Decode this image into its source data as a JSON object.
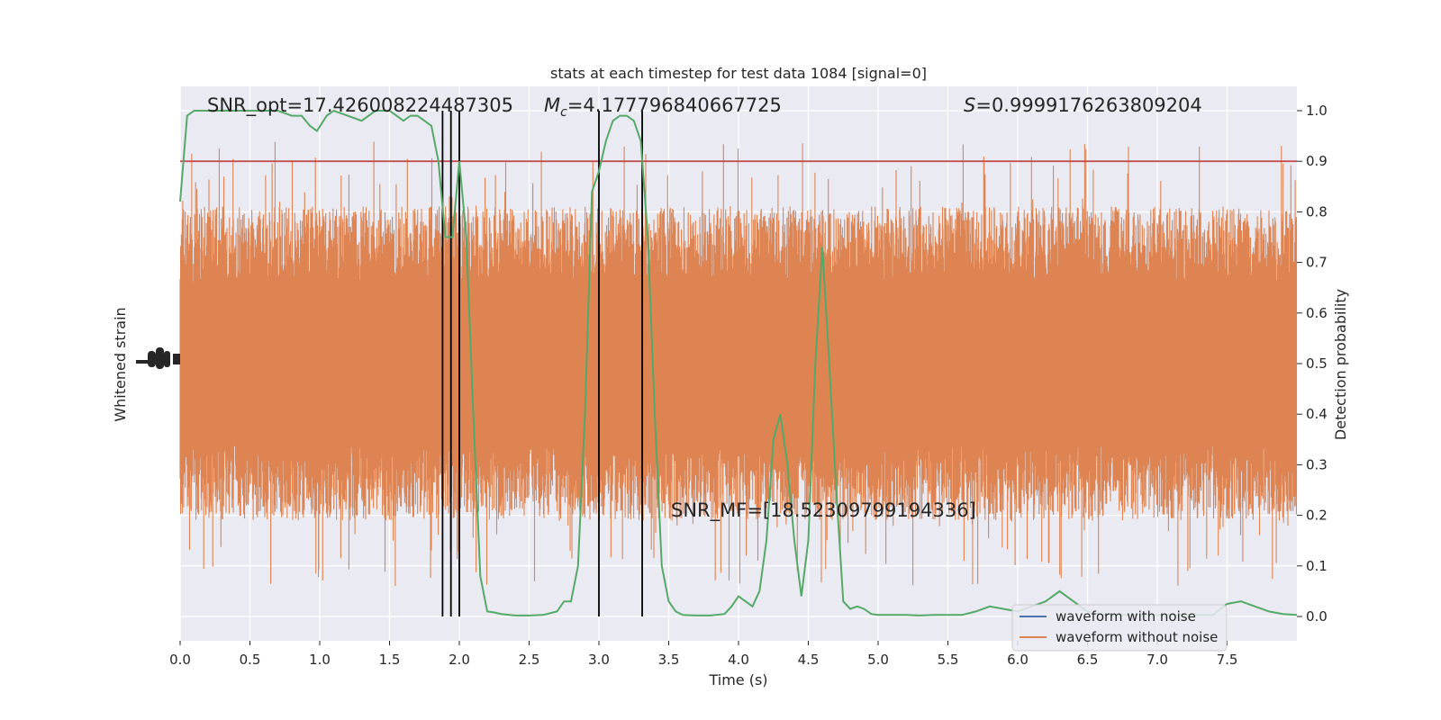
{
  "chart_data": {
    "type": "line",
    "title": "stats at each timestep for test data 1084 [signal=0]",
    "xlabel": "Time (s)",
    "ylabel_left": "Whitened strain",
    "ylabel_right": "Detection probability",
    "xlim": [
      0.0,
      8.0
    ],
    "ylim_right": [
      -0.048,
      1.048
    ],
    "x_ticks": [
      "0.0",
      "0.5",
      "1.0",
      "1.5",
      "2.0",
      "2.5",
      "3.0",
      "3.5",
      "4.0",
      "4.5",
      "5.0",
      "5.5",
      "6.0",
      "6.5",
      "7.0",
      "7.5"
    ],
    "x_tick_values": [
      0.0,
      0.5,
      1.0,
      1.5,
      2.0,
      2.5,
      3.0,
      3.5,
      4.0,
      4.5,
      5.0,
      5.5,
      6.0,
      6.5,
      7.0,
      7.5
    ],
    "y_right_ticks": [
      "0.0",
      "0.1",
      "0.2",
      "0.3",
      "0.4",
      "0.5",
      "0.6",
      "0.7",
      "0.8",
      "0.9",
      "1.0"
    ],
    "y_right_tick_values": [
      0.0,
      0.1,
      0.2,
      0.3,
      0.4,
      0.5,
      0.6,
      0.7,
      0.8,
      0.9,
      1.0
    ],
    "threshold": 0.9,
    "vertical_lines_x": [
      1.88,
      1.94,
      2.0,
      3.0,
      3.31
    ],
    "annotations": {
      "snr_opt": "SNR_opt=17.426008224487305",
      "mc_symbol": "M",
      "mc_subscript": "c",
      "mc_value": "=4.177796840667725",
      "s_symbol": "S",
      "s_value": "=0.9999176263809204",
      "snr_mf": "SNR_MF=[18.52309799194336]"
    },
    "legend": {
      "placement": "lower-right",
      "entries": [
        "waveform with noise",
        "waveform without noise"
      ]
    },
    "series": [
      {
        "name": "waveform with noise",
        "color": "#4c72b0",
        "note_values": "rendered as dense noise band"
      },
      {
        "name": "waveform without noise",
        "color": "#dd8452",
        "band_center": 0.5,
        "band_halfwidth_typical": 0.27,
        "band_halfwidth_max": 0.44
      },
      {
        "color": "#55a868",
        "x": [
          0.0,
          0.05,
          0.1,
          0.2,
          0.3,
          0.4,
          0.5,
          0.6,
          0.7,
          0.8,
          0.87,
          0.93,
          0.98,
          1.05,
          1.1,
          1.2,
          1.3,
          1.4,
          1.5,
          1.55,
          1.6,
          1.65,
          1.7,
          1.75,
          1.8,
          1.85,
          1.9,
          1.95,
          2.0,
          2.05,
          2.1,
          2.15,
          2.2,
          2.25,
          2.3,
          2.4,
          2.5,
          2.6,
          2.7,
          2.75,
          2.8,
          2.85,
          2.9,
          2.95,
          3.0,
          3.05,
          3.1,
          3.15,
          3.2,
          3.25,
          3.3,
          3.35,
          3.4,
          3.45,
          3.5,
          3.55,
          3.6,
          3.7,
          3.8,
          3.9,
          3.95,
          4.0,
          4.05,
          4.1,
          4.15,
          4.2,
          4.25,
          4.3,
          4.35,
          4.4,
          4.45,
          4.5,
          4.55,
          4.6,
          4.65,
          4.7,
          4.75,
          4.8,
          4.85,
          4.9,
          4.95,
          5.0,
          5.1,
          5.2,
          5.3,
          5.4,
          5.5,
          5.6,
          5.7,
          5.8,
          5.9,
          6.0,
          6.1,
          6.2,
          6.3,
          6.4,
          6.5,
          6.6,
          6.7,
          6.8,
          6.9,
          7.0,
          7.1,
          7.2,
          7.3,
          7.4,
          7.5,
          7.6,
          7.7,
          7.8,
          7.9,
          8.0
        ],
        "y": [
          0.82,
          0.99,
          1.0,
          1.0,
          1.0,
          1.0,
          1.0,
          1.0,
          1.0,
          0.99,
          0.99,
          0.97,
          0.96,
          0.99,
          1.0,
          0.99,
          0.98,
          1.0,
          1.0,
          0.99,
          0.98,
          0.99,
          0.99,
          0.98,
          0.97,
          0.9,
          0.75,
          0.75,
          0.9,
          0.75,
          0.4,
          0.08,
          0.01,
          0.008,
          0.005,
          0.002,
          0.002,
          0.003,
          0.01,
          0.03,
          0.03,
          0.1,
          0.4,
          0.84,
          0.88,
          0.94,
          0.98,
          0.99,
          0.99,
          0.98,
          0.94,
          0.75,
          0.4,
          0.1,
          0.03,
          0.01,
          0.003,
          0.002,
          0.002,
          0.005,
          0.02,
          0.04,
          0.03,
          0.02,
          0.05,
          0.15,
          0.35,
          0.4,
          0.3,
          0.15,
          0.04,
          0.15,
          0.5,
          0.73,
          0.5,
          0.25,
          0.03,
          0.015,
          0.02,
          0.015,
          0.005,
          0.003,
          0.003,
          0.003,
          0.002,
          0.003,
          0.003,
          0.003,
          0.01,
          0.02,
          0.015,
          0.01,
          0.02,
          0.03,
          0.05,
          0.03,
          0.01,
          0.003,
          0.003,
          0.003,
          0.003,
          0.003,
          0.003,
          0.003,
          0.003,
          0.003,
          0.025,
          0.03,
          0.02,
          0.01,
          0.005,
          0.003
        ]
      }
    ]
  }
}
